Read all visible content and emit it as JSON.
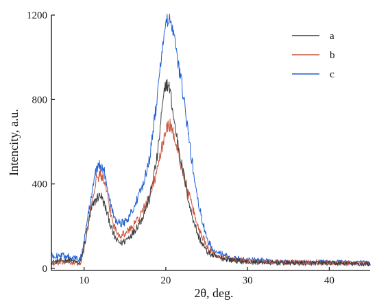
{
  "chart_data": {
    "type": "line",
    "title": "",
    "xlabel": "2θ, deg.",
    "ylabel": "Intencity, a.u.",
    "xlim": [
      6,
      45
    ],
    "ylim": [
      0,
      1200
    ],
    "x_ticks": [
      10,
      20,
      30,
      40
    ],
    "y_ticks": [
      0,
      400,
      800,
      1200
    ],
    "grid": false,
    "legend": "top-right",
    "series": [
      {
        "name": "a",
        "color": "#3d3d3d",
        "x": [
          6,
          8,
          9.5,
          10,
          10.5,
          11,
          11.5,
          12,
          12.5,
          13,
          13.5,
          14,
          14.5,
          15,
          16,
          17,
          18,
          19,
          19.5,
          20,
          20.5,
          21,
          22,
          23,
          24,
          25,
          26,
          28,
          30,
          35,
          40,
          45
        ],
        "y": [
          30,
          40,
          25,
          100,
          210,
          290,
          330,
          350,
          300,
          240,
          170,
          130,
          120,
          130,
          170,
          230,
          330,
          540,
          740,
          880,
          850,
          700,
          480,
          280,
          150,
          80,
          55,
          40,
          30,
          25,
          25,
          20
        ]
      },
      {
        "name": "b",
        "color": "#c8553d",
        "x": [
          6,
          8,
          9.5,
          10,
          10.5,
          11,
          11.5,
          12,
          12.5,
          13,
          13.5,
          14,
          14.5,
          15,
          16,
          17,
          18,
          19,
          19.5,
          20,
          20.5,
          21,
          22,
          23,
          24,
          25,
          26,
          28,
          30,
          35,
          40,
          45
        ],
        "y": [
          20,
          30,
          20,
          90,
          200,
          330,
          420,
          450,
          410,
          310,
          220,
          170,
          160,
          165,
          200,
          260,
          340,
          470,
          570,
          660,
          680,
          630,
          470,
          320,
          190,
          110,
          65,
          45,
          35,
          28,
          28,
          22
        ]
      },
      {
        "name": "c",
        "color": "#1f5fd6",
        "x": [
          6,
          8,
          9.5,
          10,
          10.5,
          11,
          11.5,
          12,
          12.5,
          13,
          13.5,
          14,
          14.5,
          15,
          16,
          17,
          18,
          19,
          19.5,
          20,
          20.5,
          21,
          22,
          23,
          24,
          25,
          26,
          28,
          30,
          35,
          40,
          45
        ],
        "y": [
          60,
          60,
          40,
          130,
          250,
          380,
          470,
          490,
          450,
          360,
          270,
          220,
          215,
          220,
          280,
          370,
          520,
          820,
          1030,
          1160,
          1180,
          1090,
          860,
          560,
          300,
          140,
          80,
          50,
          40,
          30,
          30,
          25
        ]
      }
    ]
  }
}
